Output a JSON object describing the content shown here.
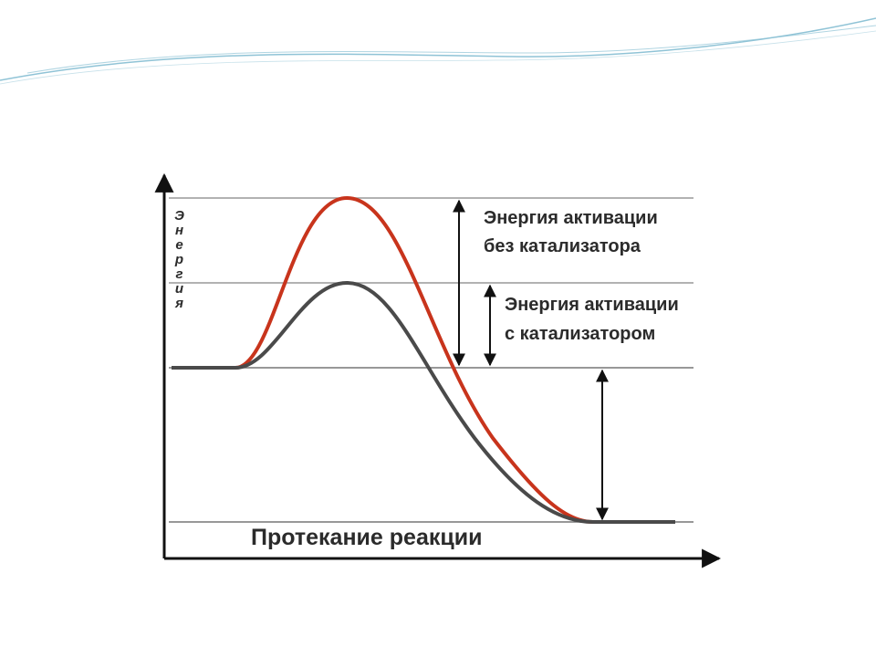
{
  "diagram": {
    "y_axis_label": "Энергия",
    "x_axis_label": "Протекание реакции",
    "annotations": [
      {
        "lines": [
          "Энергия активации",
          "без катализатора"
        ]
      },
      {
        "lines": [
          "Энергия активации",
          "с катализатором"
        ]
      }
    ]
  }
}
